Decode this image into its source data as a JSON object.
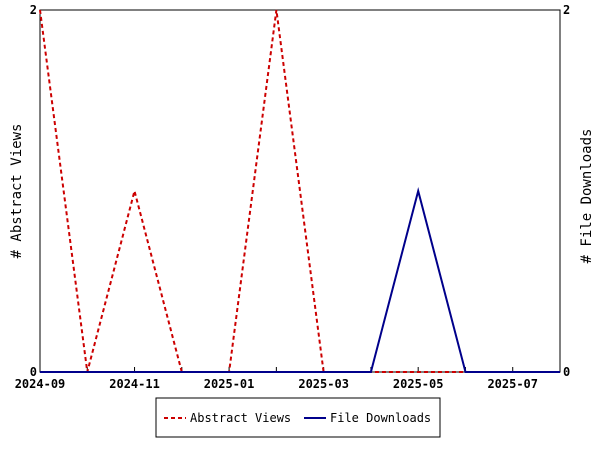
{
  "chart_data": {
    "type": "line",
    "x": [
      "2024-09",
      "2024-10",
      "2024-11",
      "2024-12",
      "2025-01",
      "2025-02",
      "2025-03",
      "2025-04",
      "2025-05",
      "2025-06",
      "2025-07",
      "2025-08"
    ],
    "x_tick_labels": [
      "2024-09",
      "2024-11",
      "2025-01",
      "2025-03",
      "2025-05",
      "2025-07"
    ],
    "series": [
      {
        "name": "Abstract Views",
        "axis": "left",
        "color": "#cc0000",
        "dash": "dashed",
        "values": [
          2,
          0,
          1,
          0,
          0,
          2,
          0,
          0,
          0,
          0,
          0,
          0
        ]
      },
      {
        "name": "File Downloads",
        "axis": "right",
        "color": "#00008b",
        "dash": "solid",
        "values": [
          0,
          0,
          0,
          0,
          0,
          0,
          0,
          0,
          1,
          0,
          0,
          0
        ]
      }
    ],
    "ylabel_left": "# Abstract Views",
    "ylabel_right": "# File Downloads",
    "ylim_left": [
      0,
      2
    ],
    "ylim_right": [
      0,
      2
    ],
    "y_ticks_left": [
      "0",
      "2"
    ],
    "y_ticks_right": [
      "0",
      "2"
    ],
    "grid": false,
    "legend_position": "bottom-center"
  }
}
